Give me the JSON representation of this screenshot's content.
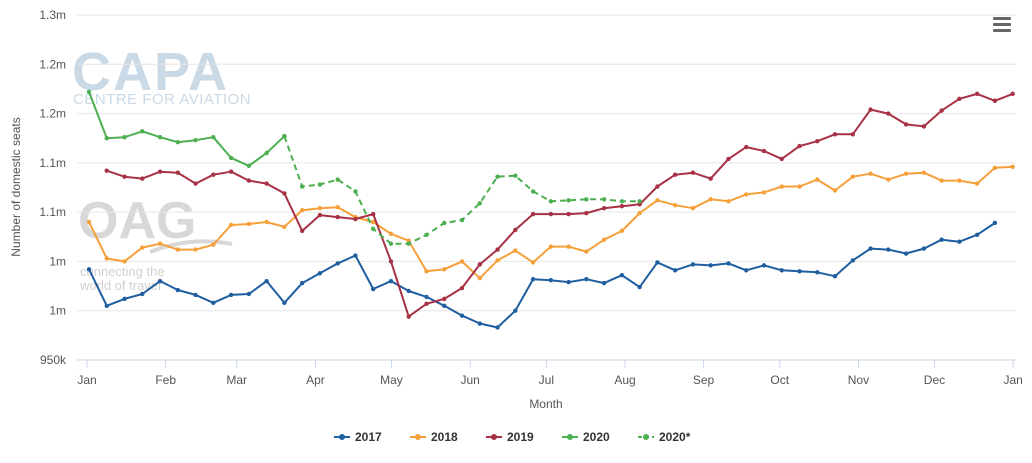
{
  "menu_icon": "hamburger-menu-icon",
  "watermarks": {
    "capa_logo": "CAPA",
    "capa_tagline": "CENTRE FOR AVIATION",
    "oag_logo": "OAG",
    "oag_tagline_1": "connecting the",
    "oag_tagline_2": "world of travel"
  },
  "chart_data": {
    "type": "line",
    "title": "",
    "xlabel": "Month",
    "ylabel": "Number of domestic seats",
    "x_unit": "week of year",
    "x_range": [
      1,
      53
    ],
    "x_ticks": [
      {
        "label": "Jan",
        "x": 1
      },
      {
        "label": "Feb",
        "x": 5.43
      },
      {
        "label": "Mar",
        "x": 9.43
      },
      {
        "label": "Apr",
        "x": 13.86
      },
      {
        "label": "May",
        "x": 18.14
      },
      {
        "label": "Jun",
        "x": 22.57
      },
      {
        "label": "Jul",
        "x": 26.86
      },
      {
        "label": "Aug",
        "x": 31.29
      },
      {
        "label": "Sep",
        "x": 35.71
      },
      {
        "label": "Oct",
        "x": 40
      },
      {
        "label": "Nov",
        "x": 44.43
      },
      {
        "label": "Dec",
        "x": 48.71
      },
      {
        "label": "Jan",
        "x": 53.14
      }
    ],
    "ylim": [
      950000,
      1300000
    ],
    "y_ticks": [
      {
        "label": "950k",
        "value": 950000
      },
      {
        "label": "1m",
        "value": 1000000
      },
      {
        "label": "1m",
        "value": 1050000
      },
      {
        "label": "1.1m",
        "value": 1100000
      },
      {
        "label": "1.1m",
        "value": 1150000
      },
      {
        "label": "1.2m",
        "value": 1200000
      },
      {
        "label": "1.2m",
        "value": 1250000
      },
      {
        "label": "1.3m",
        "value": 1300000
      }
    ],
    "grid": true,
    "legend_position": "bottom-center",
    "series": [
      {
        "name": "2017",
        "color": "#1f5fa0",
        "dashed": false,
        "x_start": 1,
        "values": [
          1042000,
          1005000,
          1012000,
          1017000,
          1030000,
          1021000,
          1016000,
          1008000,
          1016000,
          1017000,
          1030000,
          1008000,
          1028000,
          1038000,
          1048000,
          1056000,
          1022000,
          1030000,
          1020000,
          1014000,
          1005000,
          995000,
          987000,
          983000,
          1000000,
          1032000,
          1031000,
          1029000,
          1032000,
          1028000,
          1036000,
          1024000,
          1049000,
          1041000,
          1047000,
          1046000,
          1048000,
          1041000,
          1046000,
          1041000,
          1040000,
          1039000,
          1035000,
          1051000,
          1063000,
          1062000,
          1058000,
          1063000,
          1072000,
          1070000,
          1077000,
          1089000
        ]
      },
      {
        "name": "2018",
        "color": "#f5a03a",
        "dashed": false,
        "x_start": 1,
        "values": [
          1090000,
          1053000,
          1050000,
          1064000,
          1068000,
          1062000,
          1062000,
          1067000,
          1087000,
          1088000,
          1090000,
          1085000,
          1102000,
          1104000,
          1105000,
          1095000,
          1090000,
          1078000,
          1071000,
          1040000,
          1042000,
          1050000,
          1033000,
          1051000,
          1061000,
          1049000,
          1065000,
          1065000,
          1060000,
          1072000,
          1081000,
          1099000,
          1112000,
          1107000,
          1104000,
          1113000,
          1111000,
          1118000,
          1120000,
          1126000,
          1126000,
          1133000,
          1122000,
          1136000,
          1139000,
          1133000,
          1139000,
          1140000,
          1132000,
          1132000,
          1129000,
          1145000,
          1146000
        ]
      },
      {
        "name": "2019",
        "color": "#a83245",
        "dashed": false,
        "x_start": 2,
        "values": [
          1142000,
          1136000,
          1134000,
          1141000,
          1140000,
          1129000,
          1138000,
          1141000,
          1132000,
          1129000,
          1119000,
          1081000,
          1097000,
          1095000,
          1093000,
          1098000,
          1050000,
          994000,
          1007000,
          1012000,
          1023000,
          1047000,
          1062000,
          1082000,
          1098000,
          1098000,
          1098000,
          1099000,
          1104000,
          1106000,
          1108000,
          1126000,
          1138000,
          1140000,
          1134000,
          1154000,
          1166000,
          1162000,
          1154000,
          1167000,
          1172000,
          1179000,
          1179000,
          1204000,
          1200000,
          1189000,
          1187000,
          1203000,
          1215000,
          1220000,
          1213000,
          1220000
        ]
      },
      {
        "name": "2020",
        "color": "#4caf50",
        "dashed": false,
        "x_start": 1,
        "values": [
          1222000,
          1175000,
          1176000,
          1182000,
          1176000,
          1171000,
          1173000,
          1176000,
          1155000,
          1147000,
          1160000,
          1177000
        ]
      },
      {
        "name": "2020*",
        "color": "#4caf50",
        "dashed": true,
        "x_start": 12,
        "values": [
          1177000,
          1126000,
          1128000,
          1133000,
          1121000,
          1083000,
          1068000,
          1068000,
          1077000,
          1089000,
          1092000,
          1109000,
          1136000,
          1137000,
          1121000,
          1111000,
          1112000,
          1113000,
          1113000,
          1111000,
          1111000
        ]
      }
    ]
  }
}
